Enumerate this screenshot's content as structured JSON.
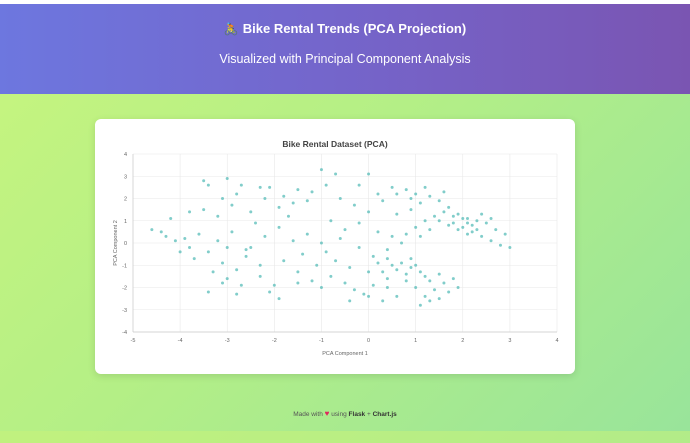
{
  "header": {
    "title_icon": "bicyclist-icon",
    "title_emoji": "🚴",
    "title": "Bike Rental Trends (PCA Projection)",
    "subtitle": "Visualized with Principal Component Analysis"
  },
  "footer": {
    "made_with": "Made with",
    "using": "using",
    "tech1": "Flask",
    "separator": "+",
    "tech2": "Chart.js"
  },
  "colors": {
    "header_start": "#6d77df",
    "header_end": "#7a55b2",
    "page_bg_start": "#c8f57e",
    "page_bg_end": "#98e49b",
    "point": "#4bb8b4"
  },
  "chart_data": {
    "type": "scatter",
    "title": "Bike Rental Dataset (PCA)",
    "xlabel": "PCA Component 1",
    "ylabel": "PCA Component 2",
    "xlim": [
      -5,
      4
    ],
    "ylim": [
      -4,
      4
    ],
    "xticks": [
      -5,
      -4,
      -3,
      -2,
      -1,
      0,
      1,
      2,
      3,
      4
    ],
    "yticks": [
      -4,
      -3,
      -2,
      -1,
      0,
      1,
      2,
      3,
      4
    ],
    "grid": true,
    "legend": "none",
    "series": [
      {
        "points": [
          [
            -4.6,
            0.6
          ],
          [
            -4.4,
            0.5
          ],
          [
            -4.3,
            0.3
          ],
          [
            -4.1,
            0.1
          ],
          [
            -3.9,
            0.2
          ],
          [
            -4.0,
            -0.4
          ],
          [
            -3.8,
            -0.2
          ],
          [
            -3.6,
            0.4
          ],
          [
            -3.5,
            2.8
          ],
          [
            -3.4,
            2.6
          ],
          [
            -3.0,
            2.9
          ],
          [
            -2.7,
            2.6
          ],
          [
            -2.3,
            2.5
          ],
          [
            -2.1,
            2.5
          ],
          [
            -3.1,
            2.0
          ],
          [
            -2.8,
            2.2
          ],
          [
            -3.5,
            1.5
          ],
          [
            -3.2,
            1.2
          ],
          [
            -2.9,
            1.7
          ],
          [
            -2.5,
            1.4
          ],
          [
            -2.2,
            2.0
          ],
          [
            -1.9,
            1.6
          ],
          [
            -1.6,
            1.8
          ],
          [
            -1.3,
            1.9
          ],
          [
            -3.7,
            -0.7
          ],
          [
            -3.4,
            -0.4
          ],
          [
            -3.1,
            -0.9
          ],
          [
            -2.8,
            -1.2
          ],
          [
            -2.6,
            -0.6
          ],
          [
            -2.3,
            -1.5
          ],
          [
            -2.0,
            -1.9
          ],
          [
            -1.9,
            -2.5
          ],
          [
            -3.3,
            -1.3
          ],
          [
            -3.0,
            -1.6
          ],
          [
            -2.7,
            -1.9
          ],
          [
            -3.4,
            -2.2
          ],
          [
            -2.5,
            -0.2
          ],
          [
            -2.2,
            0.3
          ],
          [
            -1.9,
            0.7
          ],
          [
            -1.6,
            0.1
          ],
          [
            -1.4,
            -0.5
          ],
          [
            -1.1,
            -1.0
          ],
          [
            -0.8,
            -1.5
          ],
          [
            -0.5,
            -1.8
          ],
          [
            -0.3,
            -2.1
          ],
          [
            -0.1,
            -2.3
          ],
          [
            0.1,
            -1.9
          ],
          [
            0.4,
            -1.6
          ],
          [
            -1.2,
            2.3
          ],
          [
            -0.9,
            2.6
          ],
          [
            -0.6,
            2.0
          ],
          [
            -0.3,
            1.7
          ],
          [
            0.0,
            1.4
          ],
          [
            0.3,
            1.9
          ],
          [
            0.6,
            2.2
          ],
          [
            0.9,
            2.0
          ],
          [
            -1.0,
            3.3
          ],
          [
            -0.7,
            3.1
          ],
          [
            -0.2,
            2.6
          ],
          [
            0.0,
            3.1
          ],
          [
            -0.8,
            1.0
          ],
          [
            -0.5,
            0.6
          ],
          [
            -0.2,
            0.9
          ],
          [
            0.2,
            0.5
          ],
          [
            0.5,
            0.3
          ],
          [
            0.7,
            0.0
          ],
          [
            0.4,
            -0.3
          ],
          [
            0.1,
            -0.6
          ],
          [
            -0.2,
            -0.2
          ],
          [
            -0.6,
            0.2
          ],
          [
            -1.0,
            0.0
          ],
          [
            -1.3,
            0.4
          ],
          [
            0.6,
            1.3
          ],
          [
            0.9,
            1.5
          ],
          [
            1.1,
            1.8
          ],
          [
            1.3,
            2.1
          ],
          [
            1.5,
            1.9
          ],
          [
            1.7,
            1.6
          ],
          [
            1.9,
            1.3
          ],
          [
            2.1,
            1.1
          ],
          [
            1.8,
            0.9
          ],
          [
            2.0,
            0.7
          ],
          [
            2.2,
            0.5
          ],
          [
            2.4,
            0.3
          ],
          [
            2.6,
            0.1
          ],
          [
            2.8,
            -0.1
          ],
          [
            2.5,
            0.9
          ],
          [
            2.3,
            1.0
          ],
          [
            1.9,
            0.6
          ],
          [
            2.1,
            0.9
          ],
          [
            2.0,
            1.1
          ],
          [
            1.8,
            1.2
          ],
          [
            2.2,
            0.8
          ],
          [
            2.1,
            0.4
          ],
          [
            1.7,
            0.8
          ],
          [
            2.3,
            0.6
          ],
          [
            1.4,
            1.2
          ],
          [
            1.2,
            1.0
          ],
          [
            1.0,
            0.7
          ],
          [
            0.8,
            0.4
          ],
          [
            1.6,
            1.4
          ],
          [
            1.5,
            1.0
          ],
          [
            1.3,
            0.6
          ],
          [
            1.1,
            0.3
          ],
          [
            0.7,
            -0.9
          ],
          [
            0.9,
            -1.1
          ],
          [
            1.1,
            -1.3
          ],
          [
            0.8,
            -1.4
          ],
          [
            1.0,
            -1.0
          ],
          [
            1.2,
            -1.5
          ],
          [
            0.6,
            -1.2
          ],
          [
            0.9,
            -0.7
          ],
          [
            0.5,
            -1.0
          ],
          [
            0.3,
            -1.3
          ],
          [
            0.4,
            -0.7
          ],
          [
            1.3,
            -1.7
          ],
          [
            1.5,
            -1.4
          ],
          [
            1.6,
            -1.8
          ],
          [
            1.4,
            -2.1
          ],
          [
            1.7,
            -2.2
          ],
          [
            1.2,
            -2.4
          ],
          [
            1.0,
            -2.0
          ],
          [
            0.8,
            -1.7
          ],
          [
            0.6,
            -2.4
          ],
          [
            0.4,
            -2.0
          ],
          [
            1.8,
            -1.6
          ],
          [
            1.9,
            -2.0
          ],
          [
            1.1,
            -2.8
          ],
          [
            1.3,
            -2.6
          ],
          [
            1.5,
            -2.5
          ],
          [
            -2.3,
            -1.0
          ],
          [
            -1.8,
            -0.8
          ],
          [
            -1.5,
            -1.3
          ],
          [
            -1.2,
            -1.7
          ],
          [
            -0.9,
            -0.4
          ],
          [
            -0.4,
            -1.1
          ],
          [
            0.2,
            -0.9
          ],
          [
            0.0,
            -1.3
          ],
          [
            -0.7,
            -0.8
          ],
          [
            -1.7,
            1.2
          ],
          [
            -2.4,
            0.9
          ],
          [
            -2.9,
            0.5
          ],
          [
            -3.2,
            0.1
          ],
          [
            -2.6,
            -0.3
          ],
          [
            -4.2,
            1.1
          ],
          [
            -3.8,
            1.4
          ],
          [
            -3.0,
            -0.2
          ],
          [
            2.7,
            0.6
          ],
          [
            2.9,
            0.4
          ],
          [
            3.0,
            -0.2
          ],
          [
            2.4,
            1.3
          ],
          [
            2.6,
            1.1
          ],
          [
            0.2,
            2.2
          ],
          [
            0.5,
            2.5
          ],
          [
            0.8,
            2.4
          ],
          [
            1.0,
            2.2
          ],
          [
            1.2,
            2.5
          ],
          [
            1.6,
            2.3
          ],
          [
            -1.8,
            2.1
          ],
          [
            -1.5,
            2.4
          ],
          [
            0.3,
            -2.6
          ],
          [
            0.0,
            -2.4
          ],
          [
            -0.4,
            -2.6
          ],
          [
            -1.0,
            -2.0
          ],
          [
            -1.5,
            -1.8
          ],
          [
            -2.1,
            -2.2
          ],
          [
            -2.8,
            -2.3
          ],
          [
            -3.1,
            -1.8
          ]
        ]
      }
    ]
  }
}
